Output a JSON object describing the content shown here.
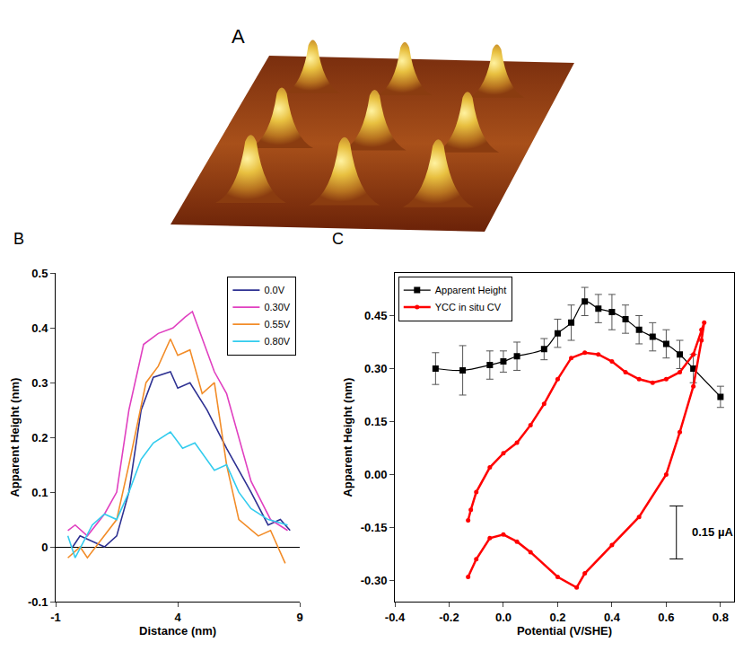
{
  "chart_data": [
    {
      "type": "image",
      "label": "A"
    },
    {
      "type": "line",
      "label": "B",
      "x_title": "Distance (nm)",
      "y_title": "Apparent Height (nm)",
      "xlim": [
        -1,
        9
      ],
      "xticks": [
        -1,
        4,
        9
      ],
      "ylim": [
        -0.1,
        0.5
      ],
      "yticks": [
        -0.1,
        0,
        0.1,
        0.2,
        0.3,
        0.4,
        0.5
      ],
      "legend": "top right",
      "series": [
        {
          "name": "0.0V",
          "color": "#2e3192",
          "x": [
            -0.3,
            0,
            1,
            1.5,
            2,
            2.5,
            3,
            3.7,
            4,
            4.5,
            5.2,
            6,
            7,
            7.7,
            8.2,
            8.6
          ],
          "values": [
            0,
            0.02,
            0,
            0.02,
            0.1,
            0.25,
            0.31,
            0.32,
            0.29,
            0.3,
            0.25,
            0.18,
            0.1,
            0.04,
            0.05,
            0.03
          ]
        },
        {
          "name": "0.30V",
          "color": "#e040c0",
          "x": [
            -0.5,
            -0.2,
            0.3,
            1,
            1.5,
            2,
            2.6,
            3.2,
            3.8,
            4.3,
            4.6,
            5,
            5.5,
            6,
            6.5,
            7,
            7.8,
            8.5
          ],
          "values": [
            0.03,
            0.04,
            0.02,
            0.06,
            0.1,
            0.25,
            0.37,
            0.39,
            0.4,
            0.42,
            0.43,
            0.38,
            0.32,
            0.28,
            0.2,
            0.12,
            0.05,
            0.03
          ]
        },
        {
          "name": "0.55V",
          "color": "#f28c28",
          "x": [
            -0.5,
            0,
            0.3,
            1,
            1.5,
            2,
            2.7,
            3.2,
            3.7,
            4,
            4.5,
            5,
            5.5,
            6,
            6.5,
            7.3,
            7.8,
            8.4
          ],
          "values": [
            -0.02,
            0,
            -0.02,
            0.02,
            0.05,
            0.15,
            0.3,
            0.33,
            0.38,
            0.35,
            0.36,
            0.28,
            0.3,
            0.15,
            0.05,
            0.02,
            0.03,
            -0.03
          ]
        },
        {
          "name": "0.80V",
          "color": "#33ccee",
          "x": [
            -0.5,
            -0.2,
            0.5,
            1,
            1.5,
            2,
            2.5,
            3,
            3.7,
            4.2,
            4.7,
            5.5,
            6,
            6.5,
            7,
            7.7,
            8.5
          ],
          "values": [
            0.02,
            -0.02,
            0.04,
            0.06,
            0.05,
            0.1,
            0.16,
            0.19,
            0.21,
            0.18,
            0.19,
            0.14,
            0.15,
            0.1,
            0.07,
            0.05,
            0.04
          ]
        }
      ]
    },
    {
      "type": "scatter",
      "label": "C",
      "x_title": "Potential (V/SHE)",
      "y_title": "Apparent Height (nm)",
      "xlim": [
        -0.4,
        0.85
      ],
      "xticks": [
        -0.4,
        -0.2,
        {
          "value": 0,
          "label": "0.0"
        },
        0.2,
        0.4,
        0.6,
        0.8
      ],
      "ylim": [
        -0.36,
        0.57
      ],
      "yticks": [
        {
          "value": -0.3,
          "label": "-0.30"
        },
        {
          "value": -0.15,
          "label": "-0.15"
        },
        {
          "value": 0,
          "label": "0.00"
        },
        {
          "value": 0.15,
          "label": "0.15"
        },
        {
          "value": 0.3,
          "label": "0.30"
        },
        {
          "value": 0.45,
          "label": "0.45"
        }
      ],
      "legend": "top left",
      "series": [
        {
          "name": "Apparent Height",
          "color": "#000000",
          "type": "line",
          "marker": "square",
          "x": [
            -0.25,
            -0.15,
            -0.05,
            0,
            0.05,
            0.15,
            0.2,
            0.25,
            0.3,
            0.35,
            0.4,
            0.45,
            0.5,
            0.55,
            0.6,
            0.65,
            0.7,
            0.8
          ],
          "values": [
            0.3,
            0.295,
            0.31,
            0.32,
            0.335,
            0.355,
            0.4,
            0.43,
            0.49,
            0.47,
            0.46,
            0.44,
            0.41,
            0.39,
            0.37,
            0.34,
            0.3,
            0.22
          ],
          "errors": [
            0.045,
            0.07,
            0.04,
            0.03,
            0.04,
            0.03,
            0.04,
            0.05,
            0.04,
            0.04,
            0.05,
            0.04,
            0.04,
            0.04,
            0.04,
            0.04,
            0.04,
            0.03
          ]
        },
        {
          "name": "YCC in situ CV",
          "color": "#ff0000",
          "type": "scatter",
          "marker": "circle",
          "x": [
            -0.13,
            -0.12,
            -0.1,
            -0.05,
            0,
            0.05,
            0.1,
            0.15,
            0.2,
            0.25,
            0.3,
            0.35,
            0.4,
            0.45,
            0.5,
            0.55,
            0.6,
            0.65,
            0.7,
            0.73,
            0.74,
            0.73,
            0.7,
            0.65,
            0.6,
            0.5,
            0.4,
            0.3,
            0.27,
            0.2,
            0.1,
            0.05,
            0,
            -0.05,
            -0.1,
            -0.13
          ],
          "values": [
            -0.13,
            -0.1,
            -0.05,
            0.02,
            0.06,
            0.09,
            0.14,
            0.2,
            0.27,
            0.33,
            0.345,
            0.34,
            0.32,
            0.29,
            0.27,
            0.26,
            0.27,
            0.29,
            0.34,
            0.41,
            0.43,
            0.38,
            0.25,
            0.12,
            0,
            -0.12,
            -0.2,
            -0.28,
            -0.32,
            -0.29,
            -0.22,
            -0.19,
            -0.17,
            -0.18,
            -0.24,
            -0.29
          ]
        }
      ],
      "scale_bar": {
        "label": "0.15 µA",
        "length": 0.15
      }
    }
  ]
}
